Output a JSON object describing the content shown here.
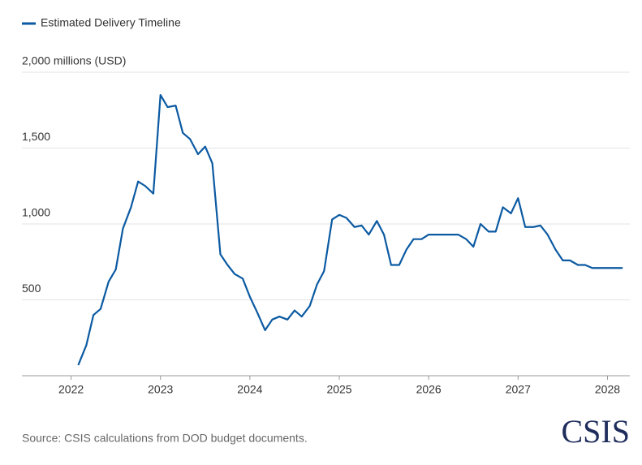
{
  "chart_data": {
    "type": "line",
    "source": "Source: CSIS calculations from DOD budget documents.",
    "logo": "CSIS",
    "xlim": [
      2021.45,
      2028.25
    ],
    "xticks": [
      2022,
      2023,
      2024,
      2025,
      2026,
      2027,
      2028
    ],
    "ylim": [
      0,
      2000
    ],
    "yticks": [
      500,
      {
        "value": 1000,
        "label": "1,000"
      },
      {
        "value": 1500,
        "label": "1,500"
      },
      {
        "value": 2000,
        "label": "2,000 millions (USD)"
      }
    ],
    "grid": true,
    "legend": "top-left",
    "x": [
      2022.08,
      2022.17,
      2022.25,
      2022.33,
      2022.42,
      2022.5,
      2022.58,
      2022.67,
      2022.75,
      2022.83,
      2022.92,
      2023.0,
      2023.08,
      2023.17,
      2023.25,
      2023.33,
      2023.42,
      2023.5,
      2023.58,
      2023.67,
      2023.75,
      2023.83,
      2023.92,
      2024.0,
      2024.08,
      2024.17,
      2024.25,
      2024.33,
      2024.42,
      2024.5,
      2024.58,
      2024.67,
      2024.75,
      2024.83,
      2024.92,
      2025.0,
      2025.08,
      2025.17,
      2025.25,
      2025.33,
      2025.42,
      2025.5,
      2025.58,
      2025.67,
      2025.75,
      2025.83,
      2025.92,
      2026.0,
      2026.08,
      2026.17,
      2026.25,
      2026.33,
      2026.42,
      2026.5,
      2026.58,
      2026.67,
      2026.75,
      2026.83,
      2026.92,
      2027.0,
      2027.08,
      2027.17,
      2027.25,
      2027.33,
      2027.42,
      2027.5,
      2027.58,
      2027.67,
      2027.75,
      2027.83,
      2027.92,
      2028.0,
      2028.08,
      2028.17
    ],
    "series": [
      {
        "name": "Estimated Delivery Timeline",
        "color": "#0b5aa2",
        "values": [
          70,
          200,
          400,
          440,
          620,
          700,
          970,
          1110,
          1280,
          1250,
          1200,
          1850,
          1770,
          1780,
          1600,
          1560,
          1460,
          1510,
          1400,
          800,
          730,
          670,
          640,
          520,
          420,
          300,
          370,
          390,
          370,
          430,
          390,
          460,
          600,
          690,
          1030,
          1060,
          1040,
          980,
          990,
          930,
          1020,
          930,
          730,
          730,
          830,
          900,
          900,
          930,
          930,
          930,
          930,
          930,
          900,
          850,
          1000,
          950,
          950,
          1110,
          1070,
          1170,
          980,
          980,
          990,
          930,
          830,
          760,
          760,
          730,
          730,
          710,
          710,
          710,
          710,
          710
        ]
      }
    ]
  }
}
